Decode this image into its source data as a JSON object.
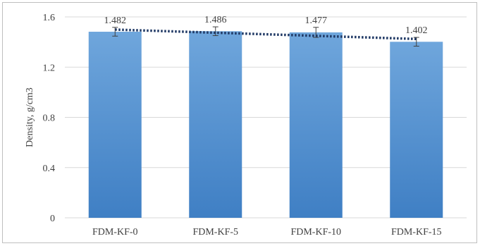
{
  "chart_data": {
    "type": "bar",
    "title": "",
    "xlabel": "",
    "ylabel": "Density, g/cm3",
    "categories": [
      "FDM-KF-0",
      "FDM-KF-5",
      "FDM-KF-10",
      "FDM-KF-15"
    ],
    "values": [
      1.482,
      1.486,
      1.477,
      1.402
    ],
    "data_labels": [
      "1.482",
      "1.486",
      "1.477",
      "1.402"
    ],
    "error": [
      0.035,
      0.035,
      0.04,
      0.035
    ],
    "ylim": [
      0,
      1.6
    ],
    "yticks": [
      0,
      0.4,
      0.8,
      1.2,
      1.6
    ],
    "ytick_labels": [
      "0",
      "0.4",
      "0.8",
      "1.2",
      "1.6"
    ],
    "grid": true,
    "legend": "none",
    "trendline": {
      "type": "linear",
      "style": "dotted",
      "color": "#1f3864"
    },
    "colors": {
      "bar_top": "#6fa6dc",
      "bar_bottom": "#3f7fc4",
      "grid": "#d9d9d9",
      "error_bar": "#404040"
    }
  }
}
